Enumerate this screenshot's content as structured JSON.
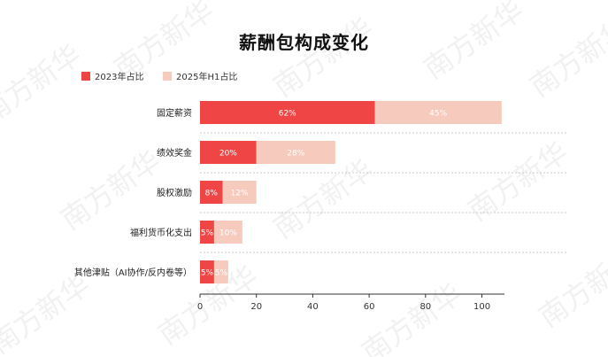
{
  "chart_data": {
    "type": "bar",
    "orientation": "horizontal",
    "stacked": true,
    "title": "薪酬包构成变化",
    "categories": [
      "固定薪资",
      "绩效奖金",
      "股权激励",
      "福利货币化支出",
      "其他津贴（AI协作/反内卷等）"
    ],
    "series": [
      {
        "name": "2023年占比",
        "values": [
          62,
          20,
          8,
          5,
          5
        ],
        "labels": [
          "62%",
          "20%",
          "8%",
          "5%",
          "5%"
        ],
        "color": "#f04545"
      },
      {
        "name": "2025年H1占比",
        "values": [
          45,
          28,
          12,
          10,
          5
        ],
        "labels": [
          "45%",
          "28%",
          "12%",
          "10%",
          "5%"
        ],
        "color": "#f6cbbd"
      }
    ],
    "xlim": [
      0,
      108
    ],
    "xticks": [
      0,
      20,
      40,
      60,
      80,
      100
    ],
    "grid": false,
    "legend": "top-left"
  },
  "watermark": "南方新华",
  "colors": {
    "axis": "#333333",
    "separator": "#bbbbbb",
    "label_on_dark": "#ffffff",
    "label_on_light": "#ffffff",
    "watermark": "#e6e6e6"
  }
}
